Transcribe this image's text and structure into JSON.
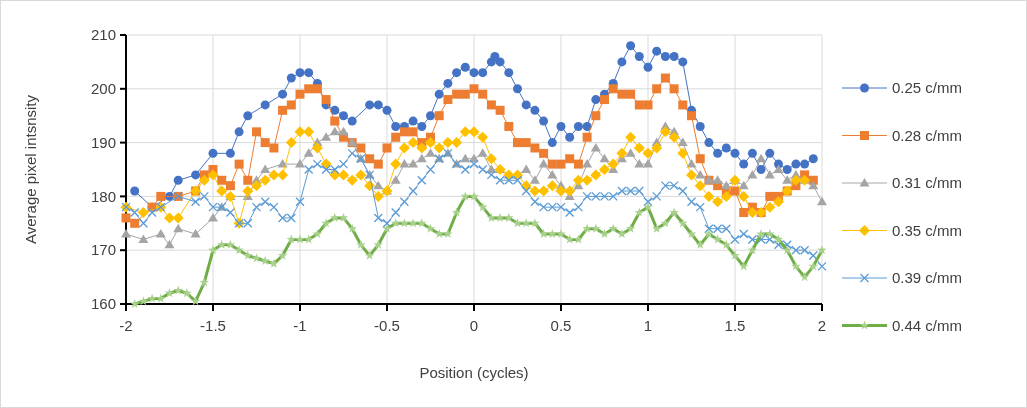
{
  "chart_data": {
    "type": "line",
    "xlabel": "Position (cycles)",
    "ylabel": "Average pixel intsnsity",
    "xlim": [
      -2,
      2
    ],
    "xticks": [
      -2,
      -1.5,
      -1,
      -0.5,
      0,
      0.5,
      1,
      1.5,
      2
    ],
    "ylim": [
      160,
      210
    ],
    "yticks": [
      160,
      170,
      180,
      190,
      200,
      210
    ],
    "grid": true,
    "legend": "right",
    "line_style": "solid",
    "series": [
      {
        "name": "0.25 c/mm",
        "color": "#4472c4",
        "marker": "circle",
        "x": [
          -1.95,
          -1.85,
          -1.75,
          -1.7,
          -1.6,
          -1.5,
          -1.4,
          -1.35,
          -1.3,
          -1.2,
          -1.1,
          -1.05,
          -1,
          -0.95,
          -0.9,
          -0.85,
          -0.8,
          -0.75,
          -0.7,
          -0.6,
          -0.55,
          -0.5,
          -0.45,
          -0.4,
          -0.35,
          -0.3,
          -0.25,
          -0.2,
          -0.15,
          -0.1,
          -0.05,
          0,
          0.05,
          0.1,
          0.12,
          0.15,
          0.2,
          0.25,
          0.3,
          0.35,
          0.4,
          0.45,
          0.5,
          0.55,
          0.6,
          0.65,
          0.7,
          0.75,
          0.8,
          0.85,
          0.9,
          0.95,
          1,
          1.05,
          1.1,
          1.15,
          1.2,
          1.25,
          1.3,
          1.35,
          1.4,
          1.45,
          1.5,
          1.55,
          1.6,
          1.65,
          1.7,
          1.75,
          1.8,
          1.85,
          1.9,
          1.95
        ],
        "values": [
          181,
          178,
          180,
          183,
          184,
          188,
          188,
          192,
          195,
          197,
          199,
          202,
          203,
          203,
          201,
          197,
          196,
          195,
          194,
          197,
          197,
          196,
          193,
          193,
          194,
          193,
          195,
          199,
          201,
          203,
          204,
          203,
          203,
          205,
          206,
          205,
          203,
          200,
          197,
          196,
          194,
          190,
          193,
          191,
          193,
          193,
          198,
          199,
          201,
          205,
          208,
          206,
          204,
          207,
          206,
          206,
          205,
          196,
          193,
          190,
          188,
          189,
          188,
          186,
          188,
          185,
          188,
          186,
          185,
          186,
          186,
          187
        ]
      },
      {
        "name": "0.28 c/mm",
        "color": "#ed7d31",
        "marker": "square",
        "x": [
          -2,
          -1.95,
          -1.85,
          -1.8,
          -1.7,
          -1.6,
          -1.55,
          -1.5,
          -1.45,
          -1.4,
          -1.35,
          -1.3,
          -1.25,
          -1.2,
          -1.15,
          -1.1,
          -1.05,
          -1,
          -0.95,
          -0.9,
          -0.85,
          -0.8,
          -0.75,
          -0.7,
          -0.65,
          -0.6,
          -0.55,
          -0.5,
          -0.45,
          -0.4,
          -0.35,
          -0.3,
          -0.25,
          -0.2,
          -0.15,
          -0.1,
          -0.05,
          0,
          0.05,
          0.1,
          0.15,
          0.2,
          0.25,
          0.3,
          0.35,
          0.4,
          0.45,
          0.5,
          0.55,
          0.6,
          0.65,
          0.7,
          0.75,
          0.8,
          0.85,
          0.9,
          0.95,
          1,
          1.05,
          1.1,
          1.15,
          1.2,
          1.25,
          1.3,
          1.35,
          1.4,
          1.45,
          1.5,
          1.55,
          1.6,
          1.65,
          1.7,
          1.75,
          1.8,
          1.85,
          1.9,
          1.95
        ],
        "values": [
          176,
          175,
          178,
          180,
          180,
          181,
          184,
          185,
          183,
          182,
          186,
          183,
          192,
          190,
          189,
          196,
          197,
          199,
          200,
          200,
          198,
          194,
          191,
          190,
          189,
          187,
          186,
          189,
          191,
          192,
          192,
          190,
          191,
          195,
          198,
          199,
          199,
          200,
          199,
          197,
          196,
          193,
          190,
          190,
          189,
          188,
          186,
          186,
          187,
          186,
          191,
          195,
          198,
          200,
          199,
          199,
          197,
          197,
          200,
          202,
          200,
          197,
          195,
          187,
          183,
          182,
          181,
          181,
          177,
          178,
          177,
          180,
          180,
          181,
          182,
          184,
          183
        ]
      },
      {
        "name": "0.31 c/mm",
        "color": "#a5a5a5",
        "marker": "triangle",
        "x": [
          -2,
          -1.9,
          -1.8,
          -1.75,
          -1.7,
          -1.6,
          -1.5,
          -1.45,
          -1.4,
          -1.3,
          -1.25,
          -1.2,
          -1.1,
          -1,
          -0.95,
          -0.9,
          -0.85,
          -0.8,
          -0.75,
          -0.7,
          -0.65,
          -0.6,
          -0.55,
          -0.5,
          -0.45,
          -0.4,
          -0.35,
          -0.3,
          -0.25,
          -0.2,
          -0.15,
          -0.1,
          -0.05,
          0,
          0.05,
          0.1,
          0.15,
          0.2,
          0.25,
          0.3,
          0.35,
          0.4,
          0.45,
          0.5,
          0.55,
          0.6,
          0.65,
          0.7,
          0.75,
          0.8,
          0.85,
          0.9,
          0.95,
          1,
          1.05,
          1.1,
          1.15,
          1.2,
          1.25,
          1.3,
          1.35,
          1.4,
          1.45,
          1.5,
          1.55,
          1.6,
          1.65,
          1.7,
          1.75,
          1.8,
          1.85,
          1.9,
          1.95,
          2
        ],
        "values": [
          173,
          172,
          173,
          171,
          174,
          173,
          176,
          178,
          180,
          180,
          183,
          185,
          186,
          186,
          188,
          190,
          191,
          192,
          192,
          190,
          187,
          184,
          182,
          181,
          183,
          186,
          186,
          187,
          188,
          187,
          188,
          186,
          187,
          187,
          188,
          185,
          185,
          184,
          184,
          185,
          183,
          186,
          184,
          182,
          180,
          182,
          186,
          189,
          187,
          185,
          187,
          188,
          186,
          186,
          190,
          193,
          192,
          190,
          186,
          184,
          183,
          183,
          182,
          183,
          182,
          184,
          187,
          184,
          185,
          183,
          184,
          183,
          182,
          179
        ]
      },
      {
        "name": "0.35 c/mm",
        "color": "#ffc000",
        "marker": "diamond",
        "x": [
          -2,
          -1.9,
          -1.8,
          -1.75,
          -1.7,
          -1.6,
          -1.55,
          -1.5,
          -1.45,
          -1.4,
          -1.35,
          -1.3,
          -1.25,
          -1.2,
          -1.15,
          -1.1,
          -1.05,
          -1,
          -0.95,
          -0.9,
          -0.85,
          -0.8,
          -0.75,
          -0.7,
          -0.65,
          -0.6,
          -0.55,
          -0.5,
          -0.45,
          -0.4,
          -0.35,
          -0.3,
          -0.25,
          -0.2,
          -0.15,
          -0.1,
          -0.05,
          0,
          0.05,
          0.1,
          0.15,
          0.2,
          0.25,
          0.3,
          0.35,
          0.4,
          0.45,
          0.5,
          0.55,
          0.6,
          0.65,
          0.7,
          0.75,
          0.8,
          0.85,
          0.9,
          0.95,
          1,
          1.05,
          1.1,
          1.15,
          1.2,
          1.25,
          1.3,
          1.35,
          1.4,
          1.45,
          1.5,
          1.55,
          1.6,
          1.65,
          1.7,
          1.75,
          1.8,
          1.85,
          1.9
        ],
        "values": [
          178,
          177,
          178,
          176,
          176,
          181,
          183,
          184,
          181,
          180,
          175,
          181,
          182,
          183,
          184,
          184,
          190,
          192,
          192,
          189,
          186,
          184,
          184,
          183,
          184,
          182,
          180,
          181,
          186,
          189,
          190,
          189,
          190,
          189,
          190,
          190,
          192,
          192,
          191,
          187,
          185,
          184,
          184,
          182,
          181,
          181,
          182,
          181,
          181,
          183,
          183,
          184,
          185,
          186,
          188,
          191,
          189,
          188,
          189,
          192,
          191,
          188,
          184,
          182,
          180,
          179,
          180,
          183,
          180,
          177,
          177,
          178,
          179,
          181,
          183,
          183
        ]
      },
      {
        "name": "0.39 c/mm",
        "color": "#5b9bd5",
        "marker": "cross",
        "x": [
          -2,
          -1.95,
          -1.9,
          -1.85,
          -1.8,
          -1.7,
          -1.6,
          -1.55,
          -1.5,
          -1.45,
          -1.4,
          -1.35,
          -1.3,
          -1.25,
          -1.2,
          -1.15,
          -1.1,
          -1.05,
          -1,
          -0.95,
          -0.9,
          -0.85,
          -0.8,
          -0.75,
          -0.7,
          -0.65,
          -0.6,
          -0.55,
          -0.5,
          -0.45,
          -0.4,
          -0.35,
          -0.3,
          -0.25,
          -0.2,
          -0.15,
          -0.1,
          -0.05,
          0,
          0.05,
          0.1,
          0.15,
          0.2,
          0.25,
          0.3,
          0.35,
          0.4,
          0.45,
          0.5,
          0.55,
          0.6,
          0.65,
          0.7,
          0.75,
          0.8,
          0.85,
          0.9,
          0.95,
          1,
          1.05,
          1.1,
          1.15,
          1.2,
          1.25,
          1.3,
          1.35,
          1.4,
          1.45,
          1.5,
          1.55,
          1.6,
          1.65,
          1.7,
          1.75,
          1.8,
          1.85,
          1.9,
          1.95,
          2
        ],
        "values": [
          178,
          177,
          175,
          177,
          178,
          180,
          179,
          180,
          178,
          178,
          177,
          175,
          175,
          178,
          179,
          178,
          176,
          176,
          179,
          185,
          186,
          185,
          185,
          186,
          188,
          187,
          184,
          176,
          175,
          177,
          179,
          181,
          183,
          185,
          187,
          188,
          186,
          185,
          186,
          185,
          184,
          183,
          183,
          183,
          181,
          179,
          178,
          178,
          178,
          177,
          178,
          180,
          180,
          180,
          180,
          181,
          181,
          181,
          179,
          180,
          182,
          182,
          181,
          179,
          178,
          174,
          174,
          174,
          172,
          173,
          172,
          172,
          172,
          171,
          171,
          170,
          170,
          169,
          167
        ]
      },
      {
        "name": "0.44 c/mm",
        "color": "#70ad47",
        "marker": "star",
        "x": [
          -1.95,
          -1.9,
          -1.85,
          -1.8,
          -1.75,
          -1.7,
          -1.65,
          -1.6,
          -1.55,
          -1.5,
          -1.45,
          -1.4,
          -1.35,
          -1.3,
          -1.25,
          -1.2,
          -1.15,
          -1.1,
          -1.05,
          -1,
          -0.95,
          -0.9,
          -0.85,
          -0.8,
          -0.75,
          -0.7,
          -0.65,
          -0.6,
          -0.55,
          -0.5,
          -0.45,
          -0.4,
          -0.35,
          -0.3,
          -0.25,
          -0.2,
          -0.15,
          -0.1,
          -0.05,
          0,
          0.05,
          0.1,
          0.15,
          0.2,
          0.25,
          0.3,
          0.35,
          0.4,
          0.45,
          0.5,
          0.55,
          0.6,
          0.65,
          0.7,
          0.75,
          0.8,
          0.85,
          0.9,
          0.95,
          1,
          1.05,
          1.1,
          1.15,
          1.2,
          1.25,
          1.3,
          1.35,
          1.4,
          1.45,
          1.5,
          1.55,
          1.6,
          1.65,
          1.7,
          1.75,
          1.8,
          1.85,
          1.9,
          1.95,
          2
        ],
        "values": [
          160,
          160.5,
          161,
          161,
          162,
          162.5,
          162,
          160.5,
          164,
          170,
          171,
          171,
          170,
          169,
          168.5,
          168,
          167.5,
          169,
          172,
          172,
          172,
          173,
          175,
          176,
          176,
          174,
          171,
          169,
          171,
          174,
          175,
          175,
          175,
          175,
          174,
          173,
          173,
          177,
          180,
          180,
          178,
          176,
          176,
          176,
          175,
          175,
          175,
          173,
          173,
          173,
          172,
          172,
          174,
          174,
          173,
          174,
          173,
          174,
          177,
          178,
          174,
          175,
          177,
          175,
          173,
          171,
          173,
          172,
          171,
          169,
          167,
          170,
          173,
          173,
          172,
          170,
          167,
          165,
          167,
          170
        ]
      }
    ]
  }
}
